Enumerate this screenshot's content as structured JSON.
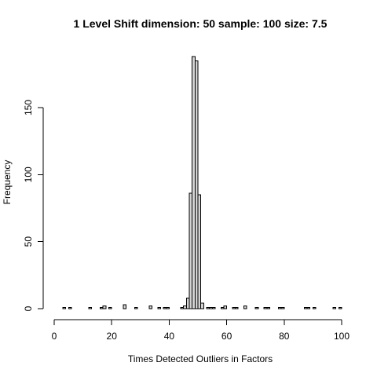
{
  "chart_data": {
    "type": "bar",
    "title": "1 Level Shift dimension: 50 sample: 100 size: 7.5",
    "xlabel": "Times Detected Outliers in Factors",
    "ylabel": "Frequency",
    "xlim": [
      0,
      100
    ],
    "ylim": [
      0,
      190
    ],
    "x_ticks": [
      "0",
      "20",
      "40",
      "60",
      "80",
      "100"
    ],
    "y_ticks": [
      "0",
      "50",
      "100",
      "150"
    ],
    "grid": false,
    "bar_fill": "#d3d3d3",
    "bar_stroke": "#000000",
    "bins": [
      {
        "x0": 3,
        "x1": 4,
        "value": 1
      },
      {
        "x0": 5,
        "x1": 6,
        "value": 1
      },
      {
        "x0": 12,
        "x1": 13,
        "value": 1
      },
      {
        "x0": 16,
        "x1": 17,
        "value": 1
      },
      {
        "x0": 17,
        "x1": 18,
        "value": 2
      },
      {
        "x0": 19,
        "x1": 20,
        "value": 1
      },
      {
        "x0": 24,
        "x1": 25,
        "value": 3
      },
      {
        "x0": 28,
        "x1": 29,
        "value": 1
      },
      {
        "x0": 33,
        "x1": 34,
        "value": 2
      },
      {
        "x0": 36,
        "x1": 37,
        "value": 1
      },
      {
        "x0": 38,
        "x1": 39,
        "value": 1
      },
      {
        "x0": 39,
        "x1": 40,
        "value": 1
      },
      {
        "x0": 44,
        "x1": 45,
        "value": 1
      },
      {
        "x0": 45,
        "x1": 46,
        "value": 2
      },
      {
        "x0": 46,
        "x1": 47,
        "value": 8
      },
      {
        "x0": 47,
        "x1": 48,
        "value": 86
      },
      {
        "x0": 48,
        "x1": 49,
        "value": 188
      },
      {
        "x0": 49,
        "x1": 50,
        "value": 185
      },
      {
        "x0": 50,
        "x1": 51,
        "value": 85
      },
      {
        "x0": 51,
        "x1": 52,
        "value": 4
      },
      {
        "x0": 53,
        "x1": 54,
        "value": 1
      },
      {
        "x0": 54,
        "x1": 55,
        "value": 1
      },
      {
        "x0": 55,
        "x1": 56,
        "value": 1
      },
      {
        "x0": 58,
        "x1": 59,
        "value": 1
      },
      {
        "x0": 59,
        "x1": 60,
        "value": 2
      },
      {
        "x0": 62,
        "x1": 63,
        "value": 1
      },
      {
        "x0": 63,
        "x1": 64,
        "value": 1
      },
      {
        "x0": 66,
        "x1": 67,
        "value": 2
      },
      {
        "x0": 70,
        "x1": 71,
        "value": 1
      },
      {
        "x0": 73,
        "x1": 74,
        "value": 1
      },
      {
        "x0": 74,
        "x1": 75,
        "value": 1
      },
      {
        "x0": 78,
        "x1": 79,
        "value": 1
      },
      {
        "x0": 79,
        "x1": 80,
        "value": 1
      },
      {
        "x0": 87,
        "x1": 88,
        "value": 1
      },
      {
        "x0": 88,
        "x1": 89,
        "value": 1
      },
      {
        "x0": 90,
        "x1": 91,
        "value": 1
      },
      {
        "x0": 97,
        "x1": 98,
        "value": 1
      },
      {
        "x0": 99,
        "x1": 100,
        "value": 1
      }
    ]
  }
}
